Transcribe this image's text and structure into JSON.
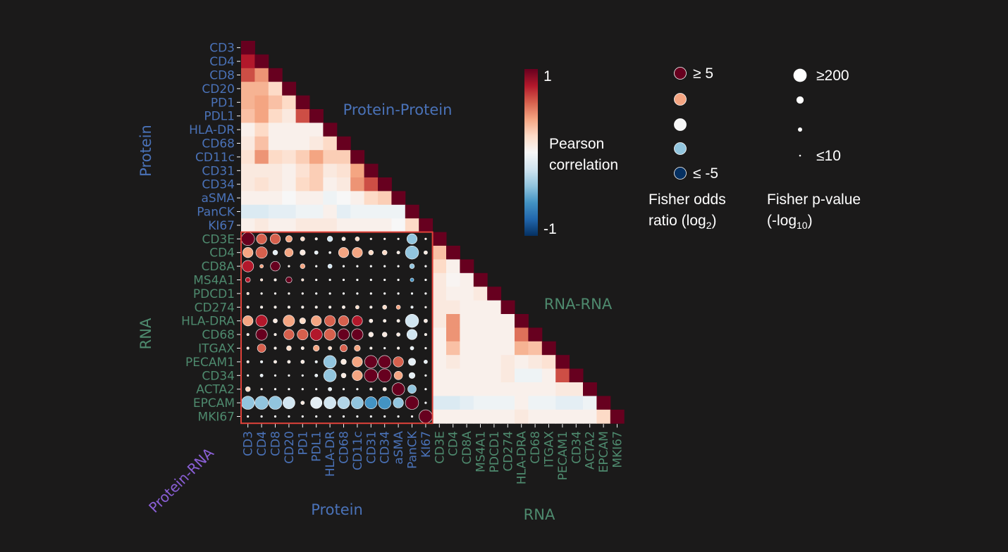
{
  "chart_data": {
    "type": "heatmap",
    "protein_labels": [
      "CD3",
      "CD4",
      "CD8",
      "CD20",
      "PD1",
      "PDL1",
      "HLA-DR",
      "CD68",
      "CD11c",
      "CD31",
      "CD34",
      "aSMA",
      "PanCK",
      "KI67"
    ],
    "rna_labels": [
      "CD3E",
      "CD4",
      "CD8A",
      "MS4A1",
      "PDCD1",
      "CD274",
      "HLA-DRA",
      "CD68",
      "ITGAX",
      "PECAM1",
      "CD34",
      "ACTA2",
      "EPCAM",
      "MKI67"
    ],
    "protein_protein_correlation": [
      [
        1
      ],
      [
        0.8,
        1
      ],
      [
        0.65,
        0.45,
        1
      ],
      [
        0.35,
        0.35,
        0.2,
        1
      ],
      [
        0.35,
        0.4,
        0.3,
        0.2,
        1
      ],
      [
        0.3,
        0.4,
        0.2,
        0.1,
        0.65,
        1
      ],
      [
        0.05,
        0.2,
        0.05,
        0.05,
        0.05,
        0.05,
        1
      ],
      [
        0.1,
        0.3,
        0.05,
        0.05,
        0.05,
        0.1,
        0.2,
        1
      ],
      [
        0.15,
        0.45,
        0.2,
        0.15,
        0.25,
        0.4,
        0.25,
        0.25,
        1
      ],
      [
        0.1,
        0.1,
        0.1,
        0.05,
        0.15,
        0.25,
        0.1,
        0.15,
        0.4,
        1
      ],
      [
        0.1,
        0.15,
        0.1,
        0.05,
        0.2,
        0.25,
        0.05,
        0.1,
        0.45,
        0.65,
        1
      ],
      [
        0.05,
        0.05,
        0.05,
        0.0,
        0.05,
        0.05,
        -0.05,
        0.0,
        0.05,
        0.2,
        0.25,
        1
      ],
      [
        -0.15,
        -0.15,
        -0.1,
        -0.1,
        -0.05,
        -0.05,
        0.05,
        -0.1,
        -0.05,
        -0.05,
        -0.05,
        -0.05,
        1
      ],
      [
        0.05,
        0.1,
        0.05,
        0.05,
        0.1,
        0.1,
        0.1,
        0.05,
        0.05,
        0.05,
        0.05,
        0.0,
        0.2,
        1
      ]
    ],
    "rna_rna_correlation": [
      [
        1
      ],
      [
        0.3,
        1
      ],
      [
        0.2,
        0.05,
        1
      ],
      [
        0.1,
        0.02,
        0.05,
        1
      ],
      [
        0.1,
        0.05,
        0.05,
        0.1,
        1
      ],
      [
        0.1,
        0.1,
        0.05,
        0.05,
        0.05,
        1
      ],
      [
        0.1,
        0.45,
        0.05,
        0.05,
        0.05,
        0.05,
        1
      ],
      [
        0.05,
        0.45,
        0.05,
        0.05,
        0.05,
        0.05,
        0.55,
        1
      ],
      [
        0.05,
        0.3,
        0.05,
        0.05,
        0.05,
        0.05,
        0.35,
        0.3,
        1
      ],
      [
        0.05,
        0.1,
        0.05,
        0.05,
        0.05,
        0.1,
        0.05,
        0.1,
        0.15,
        1
      ],
      [
        0.05,
        0.05,
        0.05,
        0.05,
        0.05,
        0.1,
        -0.05,
        -0.05,
        0.05,
        0.65,
        1
      ],
      [
        0.05,
        0.05,
        0.05,
        0.05,
        0.05,
        0.05,
        0.05,
        0.05,
        0.05,
        0.1,
        0.1,
        1
      ],
      [
        -0.15,
        -0.15,
        -0.1,
        -0.05,
        -0.05,
        -0.05,
        0.05,
        -0.05,
        -0.05,
        -0.1,
        -0.1,
        -0.05,
        1
      ],
      [
        0.05,
        0.05,
        0.05,
        0.05,
        0.05,
        0.05,
        0.1,
        0.05,
        0.05,
        0.05,
        0.05,
        0.05,
        0.2,
        1
      ]
    ],
    "protein_rna_odds_ratio_log2": [
      [
        5,
        3,
        3,
        2,
        1,
        0.5,
        -1,
        0.5,
        1,
        0.5,
        0.5,
        0.5,
        -2,
        0.5
      ],
      [
        2,
        3,
        -0.5,
        2,
        0.5,
        -0.5,
        0,
        2,
        2,
        1,
        1,
        0.5,
        -2,
        0.5
      ],
      [
        4,
        2,
        5,
        0.5,
        2,
        0,
        -1,
        0,
        0,
        0,
        0,
        0,
        -2,
        0
      ],
      [
        4,
        1,
        0.5,
        5,
        1,
        0,
        0,
        0,
        0,
        0,
        0,
        0,
        -3,
        0
      ],
      [
        1,
        0.5,
        0.5,
        0.5,
        0.5,
        0,
        0,
        0,
        0,
        0,
        0,
        0,
        -0.5,
        0
      ],
      [
        0.5,
        0.5,
        0.5,
        0.5,
        0.5,
        0.5,
        0.5,
        0.5,
        1,
        0.5,
        1,
        2,
        -0.5,
        0.5
      ],
      [
        2,
        4,
        0.5,
        2,
        1,
        2,
        3,
        3,
        4,
        0.5,
        0.5,
        0.5,
        -1,
        0.5
      ],
      [
        0.5,
        5,
        0.5,
        3,
        3,
        4,
        3,
        5,
        5,
        0.5,
        0.5,
        0.5,
        -1,
        0.5
      ],
      [
        0.5,
        3,
        0.5,
        1,
        0.5,
        2,
        1,
        3,
        2,
        0.5,
        0,
        0.5,
        -0.5,
        0.5
      ],
      [
        0.5,
        -0.5,
        0.5,
        0.5,
        0.5,
        -0.5,
        -2,
        0.5,
        2,
        5,
        5,
        3,
        -0.5,
        -0.5
      ],
      [
        0,
        -0.5,
        0,
        0,
        0,
        -0.5,
        -2,
        0.5,
        2,
        5,
        5,
        2,
        -0.5,
        0
      ],
      [
        1,
        0.5,
        0,
        0,
        0,
        0,
        -0.5,
        0,
        0,
        0.5,
        0.5,
        5,
        -2,
        0
      ],
      [
        -2,
        -2,
        -2,
        -1,
        0.5,
        -0.5,
        -1,
        -1.5,
        -2,
        -3,
        -3,
        -2,
        5,
        -0.5
      ],
      [
        0,
        0,
        0,
        0,
        0,
        0,
        0,
        0,
        0,
        0,
        0,
        0,
        0,
        5
      ]
    ],
    "protein_rna_pvalue_neglog10": [
      [
        200,
        150,
        150,
        90,
        50,
        20,
        70,
        40,
        50,
        10,
        10,
        10,
        150,
        10
      ],
      [
        150,
        170,
        60,
        120,
        70,
        40,
        15,
        150,
        150,
        60,
        60,
        30,
        200,
        40
      ],
      [
        170,
        40,
        140,
        10,
        60,
        10,
        50,
        10,
        10,
        10,
        10,
        10,
        60,
        10
      ],
      [
        60,
        20,
        20,
        80,
        20,
        10,
        10,
        10,
        10,
        10,
        10,
        10,
        40,
        10
      ],
      [
        20,
        10,
        10,
        10,
        10,
        10,
        10,
        10,
        10,
        10,
        10,
        10,
        10,
        10
      ],
      [
        20,
        20,
        20,
        20,
        20,
        20,
        20,
        30,
        40,
        20,
        50,
        50,
        20,
        10
      ],
      [
        150,
        170,
        50,
        170,
        80,
        150,
        160,
        150,
        150,
        40,
        30,
        30,
        200,
        40
      ],
      [
        20,
        170,
        20,
        150,
        160,
        180,
        170,
        170,
        170,
        60,
        60,
        40,
        150,
        20
      ],
      [
        20,
        120,
        20,
        60,
        30,
        80,
        40,
        100,
        80,
        20,
        10,
        20,
        40,
        10
      ],
      [
        20,
        20,
        30,
        30,
        40,
        20,
        190,
        70,
        150,
        190,
        190,
        150,
        100,
        40
      ],
      [
        10,
        30,
        10,
        10,
        10,
        30,
        190,
        60,
        150,
        200,
        200,
        120,
        80,
        10
      ],
      [
        60,
        10,
        10,
        10,
        10,
        10,
        40,
        10,
        10,
        20,
        40,
        190,
        120,
        10
      ],
      [
        200,
        200,
        200,
        180,
        40,
        170,
        180,
        180,
        180,
        180,
        190,
        150,
        200,
        10
      ],
      [
        10,
        10,
        10,
        10,
        10,
        10,
        10,
        10,
        10,
        10,
        10,
        10,
        10,
        200
      ]
    ]
  },
  "titles": {
    "protein_protein": "Protein-Protein",
    "rna_rna": "RNA-RNA",
    "protein_rna": "Protein-RNA",
    "y_protein": "Protein",
    "y_rna": "RNA",
    "x_protein": "Protein",
    "x_rna": "RNA"
  },
  "colorbar": {
    "max_label": "1",
    "min_label": "-1",
    "title_line1": "Pearson",
    "title_line2": "correlation"
  },
  "odds_legend": {
    "items": [
      {
        "label": "≥ 5",
        "value": 5
      },
      {
        "label": "",
        "value": 2
      },
      {
        "label": "",
        "value": 0
      },
      {
        "label": "",
        "value": -2
      },
      {
        "label": "≤ -5",
        "value": -5
      }
    ],
    "title_line1": "Fisher odds",
    "title_line2": "ratio (log",
    "title_sub": "2",
    "title_end": ")"
  },
  "pvalue_legend": {
    "items": [
      {
        "label": "≥200",
        "value": 200
      },
      {
        "label": "",
        "value": 100
      },
      {
        "label": "",
        "value": 50
      },
      {
        "label": "≤10",
        "value": 10
      }
    ],
    "title_line1": "Fisher p-value",
    "title_line2": "(-log",
    "title_sub": "10",
    "title_end": ")"
  },
  "colors": {
    "protein_label": "#4a72b8",
    "rna_label": "#4e8a6e",
    "protein_rna_label": "#8a5fd6",
    "box_border": "#e0423a",
    "text": "#ffffff"
  }
}
